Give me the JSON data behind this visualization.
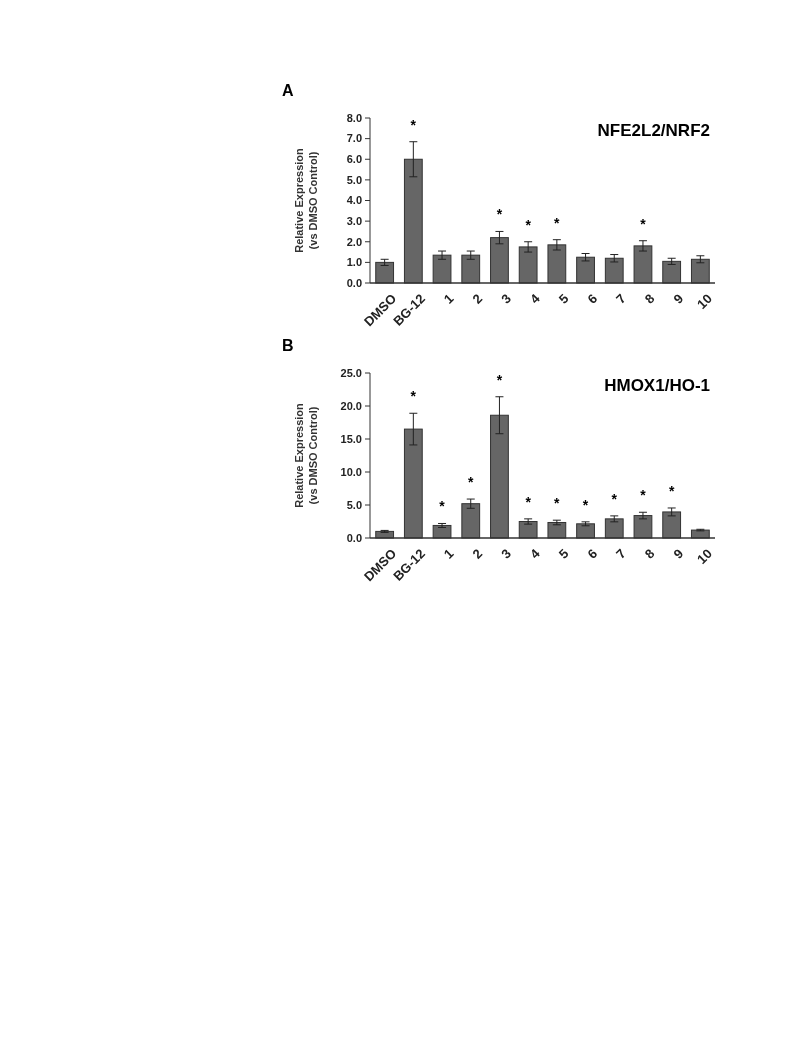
{
  "chart_data": [
    {
      "type": "bar",
      "title": "A",
      "ylabel": "Relative Expression\n(vs DMSO Control)",
      "categories": [
        "DMSO",
        "BG-12",
        "1",
        "2",
        "3",
        "4",
        "5",
        "6",
        "7",
        "8",
        "9",
        "10"
      ],
      "values": [
        1.0,
        6.0,
        1.35,
        1.35,
        2.2,
        1.75,
        1.85,
        1.25,
        1.2,
        1.8,
        1.05,
        1.15
      ],
      "errors": [
        0.15,
        0.85,
        0.2,
        0.2,
        0.3,
        0.25,
        0.25,
        0.18,
        0.18,
        0.25,
        0.15,
        0.17
      ],
      "value_labels": [
        null,
        "*",
        null,
        null,
        "*",
        "*",
        "*",
        null,
        null,
        "*",
        null,
        null
      ],
      "color": "#666666",
      "ylim": [
        0,
        8
      ],
      "yticks": [
        {
          "value": 0,
          "label": "0.0"
        },
        {
          "value": 1,
          "label": "1.0"
        },
        {
          "value": 2,
          "label": "2.0"
        },
        {
          "value": 3,
          "label": "3.0"
        },
        {
          "value": 4,
          "label": "4.0"
        },
        {
          "value": 5,
          "label": "5.0"
        },
        {
          "value": 6,
          "label": "6.0"
        },
        {
          "value": 7,
          "label": "7.0"
        },
        {
          "value": 8,
          "label": "8.0"
        }
      ],
      "annotations": [
        "NFE2L2/NRF2"
      ]
    },
    {
      "type": "bar",
      "title": "B",
      "ylabel": "Relative Expression\n(vs DMSO Control)",
      "categories": [
        "DMSO",
        "BG-12",
        "1",
        "2",
        "3",
        "4",
        "5",
        "6",
        "7",
        "8",
        "9",
        "10"
      ],
      "values": [
        1.0,
        16.5,
        1.9,
        5.2,
        18.6,
        2.5,
        2.35,
        2.15,
        2.9,
        3.4,
        3.95,
        1.2
      ],
      "errors": [
        0.15,
        2.4,
        0.3,
        0.7,
        2.8,
        0.4,
        0.35,
        0.3,
        0.45,
        0.5,
        0.6,
        0.12
      ],
      "value_labels": [
        null,
        "*",
        "*",
        "*",
        "*",
        "*",
        "*",
        "*",
        "*",
        "*",
        "*",
        null
      ],
      "color": "#666666",
      "ylim": [
        0,
        25
      ],
      "yticks": [
        {
          "value": 0,
          "label": "0.0"
        },
        {
          "value": 5,
          "label": "5.0"
        },
        {
          "value": 10,
          "label": "10.0"
        },
        {
          "value": 15,
          "label": "15.0"
        },
        {
          "value": 20,
          "label": "20.0"
        },
        {
          "value": 25,
          "label": "25.0"
        }
      ],
      "annotations": [
        "HMOX1/HO-1"
      ]
    }
  ]
}
